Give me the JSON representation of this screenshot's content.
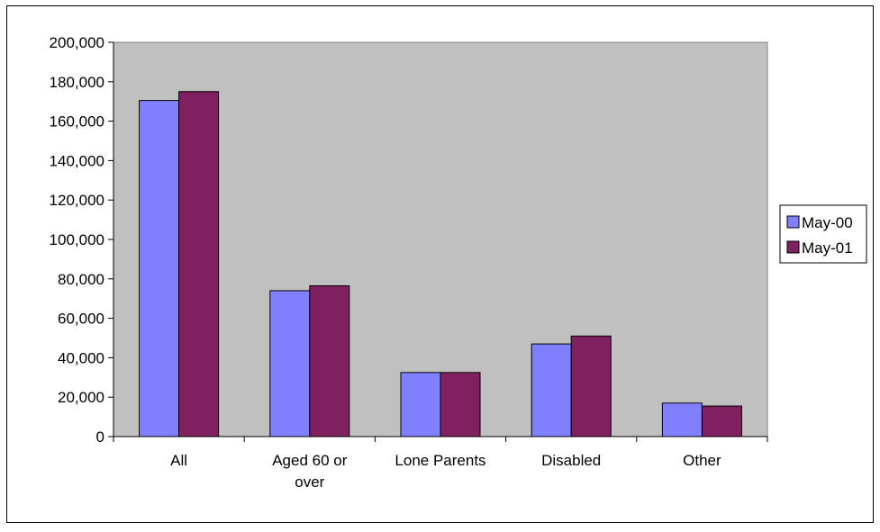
{
  "chart_data": {
    "type": "bar",
    "title": "",
    "xlabel": "",
    "ylabel": "",
    "categories": [
      [
        "All"
      ],
      [
        "Aged 60 or",
        "over"
      ],
      [
        "Lone Parents"
      ],
      [
        "Disabled"
      ],
      [
        "Other"
      ]
    ],
    "series": [
      {
        "name": "May-00",
        "color": "#8080ff",
        "values": [
          170500,
          74000,
          32500,
          47000,
          17000
        ]
      },
      {
        "name": "May-01",
        "color": "#802060",
        "values": [
          175000,
          76500,
          32500,
          51000,
          15500
        ]
      }
    ],
    "ylim": [
      0,
      200000
    ],
    "yticks": [
      0,
      20000,
      40000,
      60000,
      80000,
      100000,
      120000,
      140000,
      160000,
      180000,
      200000
    ],
    "ytick_labels": [
      "0",
      "20,000",
      "40,000",
      "60,000",
      "80,000",
      "100,000",
      "120,000",
      "140,000",
      "160,000",
      "180,000",
      "200,000"
    ],
    "plot_background": "#c0c0c0",
    "grid": false,
    "legend_position": "right"
  }
}
